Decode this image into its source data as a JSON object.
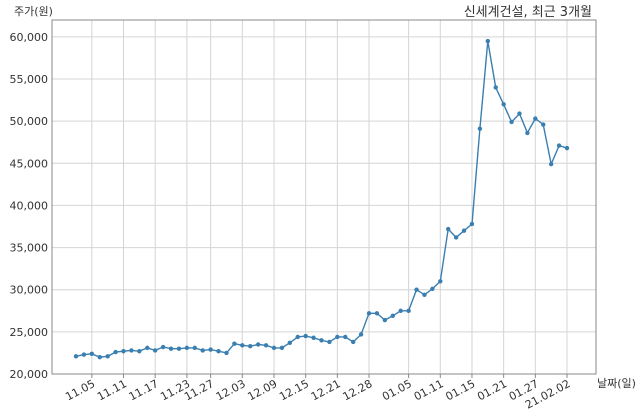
{
  "chart_data": {
    "type": "line",
    "title": "신세계건설, 최근 3개월",
    "ylabel": "주가(원)",
    "xlabel": "날짜(일)",
    "ylim": [
      20000,
      62000
    ],
    "y_ticks": [
      "20,000",
      "25,000",
      "30,000",
      "35,000",
      "40,000",
      "45,000",
      "50,000",
      "55,000",
      "60,000"
    ],
    "y_tick_values": [
      20000,
      25000,
      30000,
      35000,
      40000,
      45000,
      50000,
      55000,
      60000
    ],
    "x_tick_labels": [
      "11.05",
      "11.11",
      "11.17",
      "11.23",
      "11.27",
      "12.03",
      "12.09",
      "12.15",
      "12.21",
      "12.28",
      "01.05",
      "01.11",
      "01.15",
      "01.21",
      "01.27",
      "21.02.02"
    ],
    "x_tick_indices": [
      2,
      6,
      10,
      14,
      17,
      21,
      25,
      29,
      33,
      37,
      42,
      46,
      50,
      54,
      58,
      62
    ],
    "grid": true,
    "line_color": "#3a7fb0",
    "series": [
      {
        "values": [
          22100,
          22300,
          22400,
          22000,
          22100,
          22600,
          22700,
          22800,
          22700,
          23100,
          22800,
          23200,
          23000,
          23000,
          23100,
          23100,
          22800,
          22900,
          22700,
          22500,
          23600,
          23400,
          23300,
          23500,
          23400,
          23100,
          23100,
          23700,
          24400,
          24500,
          24300,
          24000,
          23800,
          24400,
          24400,
          23800,
          24700,
          27200,
          27200,
          26400,
          26900,
          27500,
          27500,
          30000,
          29400,
          30100,
          31000,
          37200,
          36200,
          37000,
          37800,
          49100,
          59500,
          54000,
          52000,
          49900,
          50900,
          48600,
          50300,
          49600,
          44900,
          47100,
          46800
        ]
      }
    ]
  }
}
